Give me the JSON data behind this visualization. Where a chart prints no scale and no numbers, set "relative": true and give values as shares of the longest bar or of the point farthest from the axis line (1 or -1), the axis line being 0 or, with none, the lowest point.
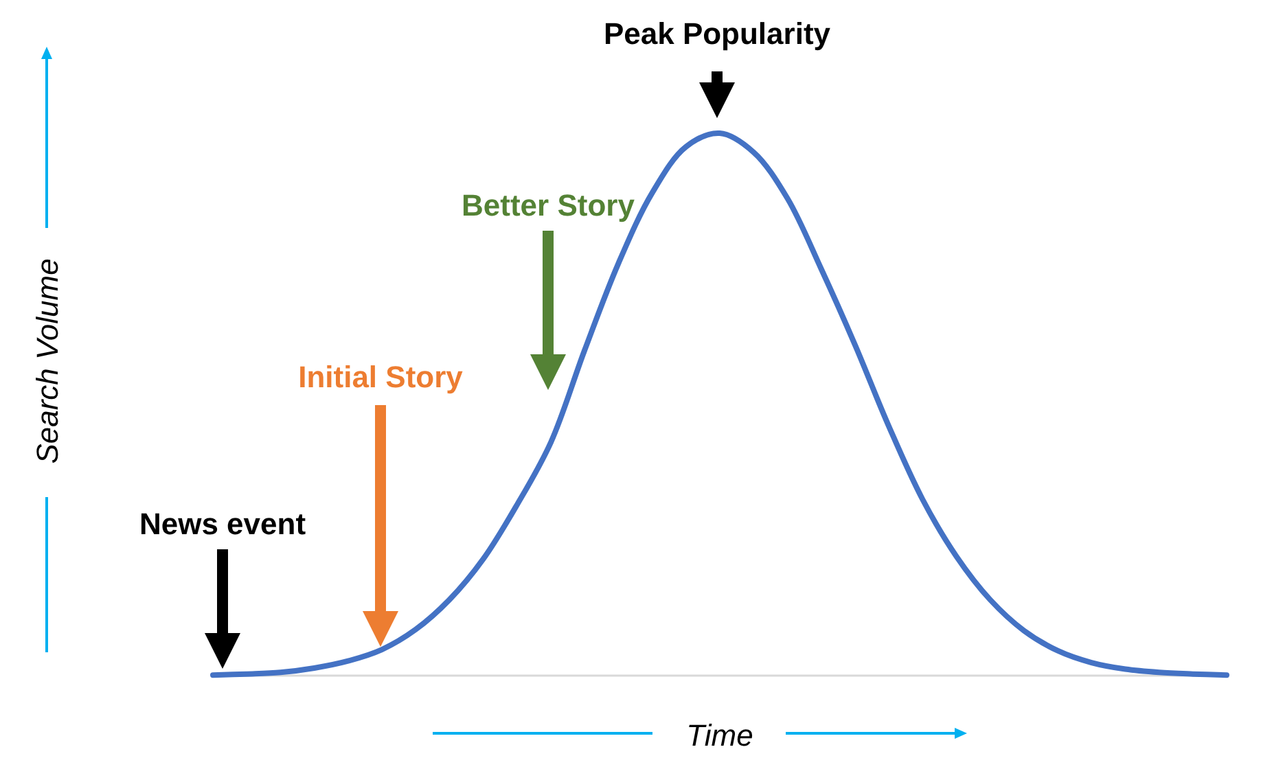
{
  "chart_data": {
    "type": "line",
    "relative": true,
    "xlabel": "Time",
    "ylabel": "Search Volume",
    "categories": [
      null,
      null,
      null,
      null,
      null,
      null,
      null,
      null,
      null,
      null,
      null,
      null,
      null,
      null,
      null,
      null,
      null,
      null,
      null,
      null,
      null,
      null,
      null,
      null,
      null,
      null,
      null,
      null,
      null,
      null,
      null
    ],
    "series": [
      {
        "color": "#4472c4",
        "values": [
          0.001,
          0.003,
          0.006,
          0.014,
          0.027,
          0.048,
          0.085,
          0.14,
          0.215,
          0.315,
          0.43,
          0.6,
          0.76,
          0.89,
          0.975,
          1,
          0.965,
          0.88,
          0.75,
          0.61,
          0.46,
          0.325,
          0.22,
          0.14,
          0.083,
          0.046,
          0.024,
          0.012,
          0.006,
          0.003,
          0.001
        ]
      }
    ],
    "annotations": [
      "Peak Popularity",
      "Better Story",
      "Initial Story",
      "News event"
    ]
  }
}
